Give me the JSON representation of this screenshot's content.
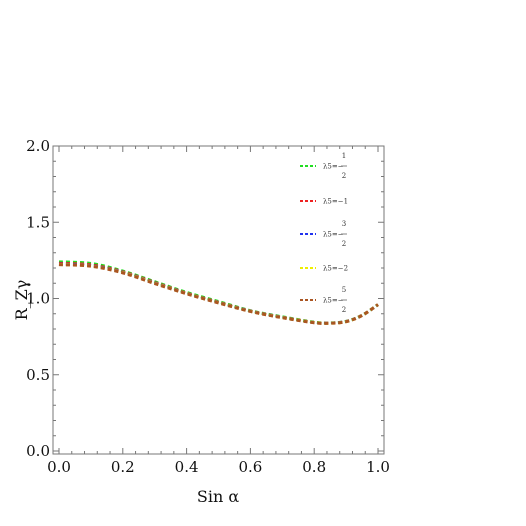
{
  "chart_data": {
    "type": "line",
    "title": "",
    "xlabel": "Sin α",
    "ylabel": "R_Zγ",
    "xlim": [
      0,
      1
    ],
    "ylim": [
      0,
      2
    ],
    "x_ticks": [
      "0.0",
      "0.2",
      "0.4",
      "0.6",
      "0.8",
      "1.0"
    ],
    "y_ticks": [
      "0.0",
      "0.5",
      "1.0",
      "1.5",
      "2.0"
    ],
    "legend_position": "top-right",
    "grid": false,
    "x": [
      0.0,
      0.1,
      0.2,
      0.3,
      0.4,
      0.5,
      0.6,
      0.7,
      0.8,
      0.85,
      0.9,
      0.95,
      1.0
    ],
    "series": [
      {
        "label_main": "λ5=−",
        "label_num": "1",
        "label_den": "2",
        "color": "#22dd22",
        "values": [
          1.24,
          1.23,
          1.18,
          1.11,
          1.04,
          0.98,
          0.92,
          0.88,
          0.845,
          0.84,
          0.85,
          0.89,
          0.96
        ]
      },
      {
        "label_main": "λ5=−1",
        "label_num": "",
        "label_den": "",
        "color": "#ee2222",
        "values": [
          1.23,
          1.22,
          1.175,
          1.105,
          1.035,
          0.975,
          0.918,
          0.877,
          0.843,
          0.839,
          0.849,
          0.889,
          0.96
        ]
      },
      {
        "label_main": "λ5=−",
        "label_num": "3",
        "label_den": "2",
        "color": "#2233ee",
        "values": [
          1.225,
          1.215,
          1.172,
          1.102,
          1.033,
          0.973,
          0.917,
          0.876,
          0.842,
          0.839,
          0.849,
          0.889,
          0.96
        ]
      },
      {
        "label_main": "λ5=−2",
        "label_num": "",
        "label_den": "",
        "color": "#eeee00",
        "values": [
          1.223,
          1.213,
          1.17,
          1.1,
          1.032,
          0.972,
          0.916,
          0.875,
          0.842,
          0.838,
          0.848,
          0.889,
          0.96
        ]
      },
      {
        "label_main": "λ5=−",
        "label_num": "5",
        "label_den": "2",
        "color": "#aa5522",
        "values": [
          1.222,
          1.212,
          1.168,
          1.098,
          1.031,
          0.971,
          0.915,
          0.874,
          0.841,
          0.838,
          0.848,
          0.889,
          0.96
        ]
      }
    ]
  }
}
